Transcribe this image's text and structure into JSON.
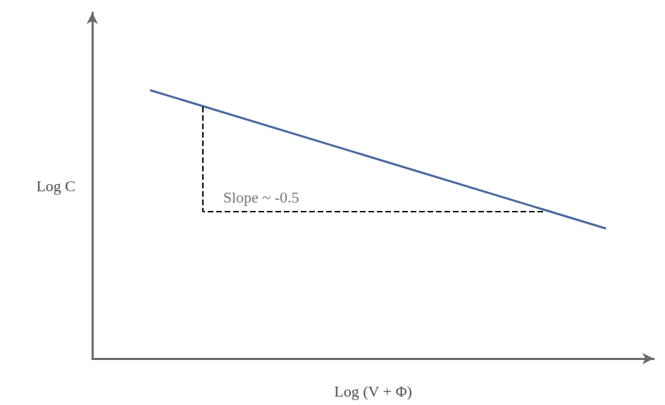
{
  "chart_data": {
    "type": "line",
    "x_label": "Log (V + Φ)",
    "y_label": "Log C",
    "xlim": [
      0,
      100
    ],
    "ylim": [
      0,
      100
    ],
    "xticks": [],
    "yticks": [],
    "tick_labels": false,
    "grid": false,
    "series": [
      {
        "color": "#4a69a0",
        "line_style": "solid",
        "x": [
          10.3,
          91.5
        ],
        "values": [
          77.6,
          37.6
        ]
      },
      {
        "color": "#000000",
        "line_style": "dashed",
        "x": [
          19.7,
          19.7,
          80.8
        ],
        "values": [
          72.8,
          42.5,
          42.5
        ]
      }
    ],
    "annotations": [
      {
        "text": "Slope ~ -0.5",
        "x": 23.3,
        "y": 46.7
      }
    ]
  }
}
